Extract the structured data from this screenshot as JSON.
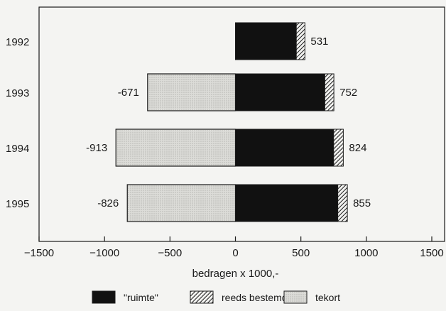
{
  "chart_data": {
    "type": "bar",
    "orientation": "horizontal",
    "stacked": true,
    "categories": [
      "1992",
      "1993",
      "1994",
      "1995"
    ],
    "series": [
      {
        "name": "\"ruimte\"",
        "values": [
          465,
          683,
          750,
          782
        ],
        "color": "#111111",
        "pattern": "solid"
      },
      {
        "name": "reeds bestemd",
        "values": [
          66,
          69,
          74,
          73
        ],
        "color": "#222222",
        "pattern": "diagonal-hatch"
      },
      {
        "name": "tekort",
        "values": [
          0,
          -671,
          -913,
          -826
        ],
        "color": "#d6d6d2",
        "pattern": "stipple"
      }
    ],
    "data_labels": {
      "positive": [
        "531",
        "752",
        "824",
        "855"
      ],
      "negative": [
        "",
        "-671",
        "-913",
        "-826"
      ]
    },
    "xlabel": "bedragen x 1000,-",
    "ylabel": "",
    "xlim": [
      -1500,
      1500
    ],
    "xticks": [
      -1500,
      -1000,
      -500,
      0,
      500,
      1000,
      1500
    ],
    "xtick_labels": [
      "−1500",
      "−1000",
      "−500",
      "0",
      "500",
      "1000",
      "1500"
    ],
    "grid": false,
    "legend_position": "bottom"
  }
}
